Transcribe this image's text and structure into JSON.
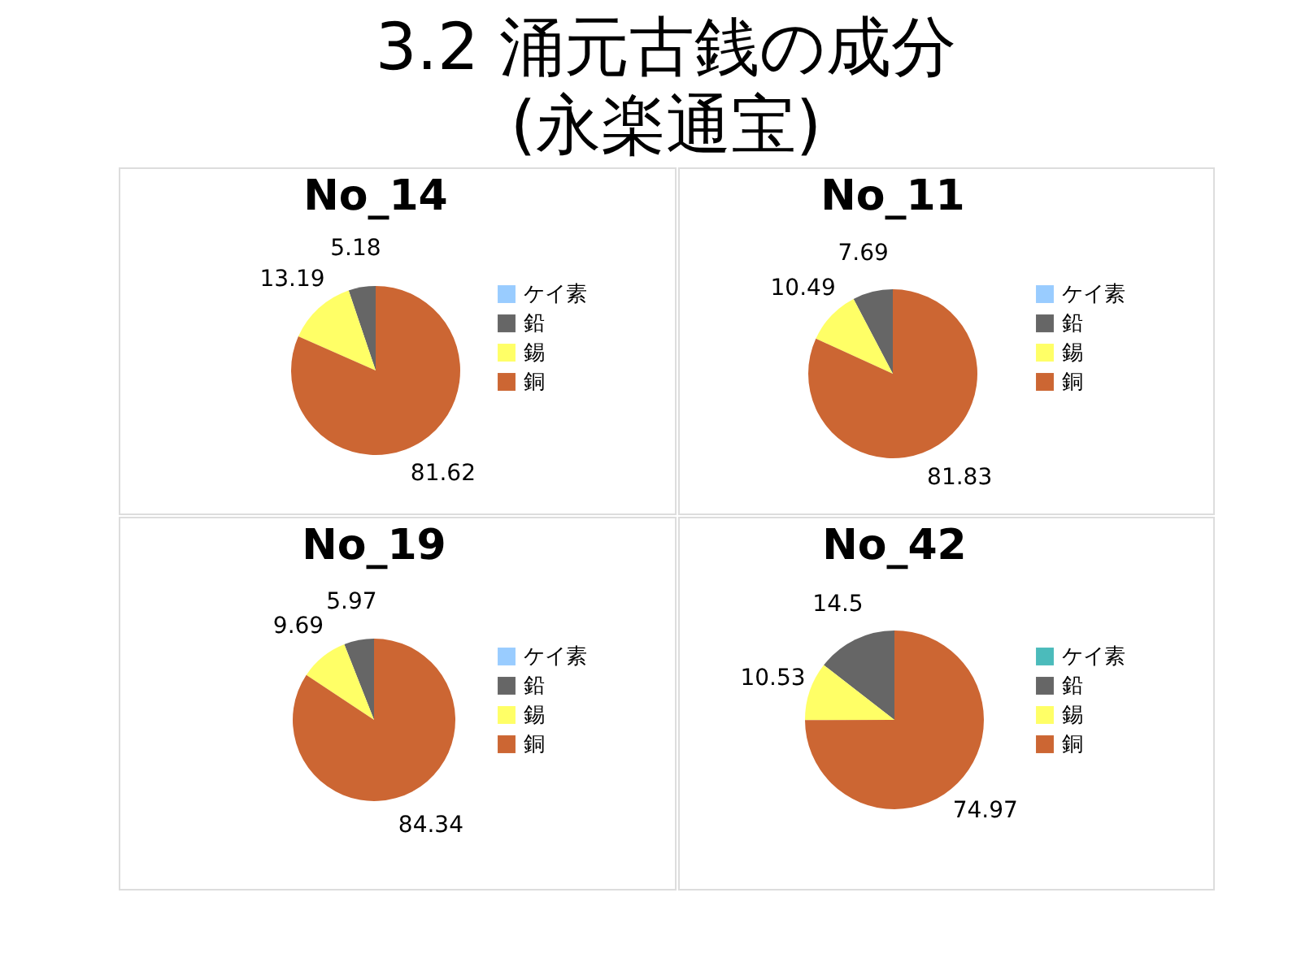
{
  "chart_data": [
    {
      "type": "other",
      "title": "3.2 涌元古銭の成分\n(永楽通宝)"
    },
    {
      "type": "pie",
      "title": "No_14",
      "categories": [
        "ケイ素",
        "鉛",
        "錫",
        "銅"
      ],
      "values": [
        null,
        5.18,
        13.19,
        81.62
      ],
      "colors": [
        "#99ccff",
        "#666666",
        "#ffff66",
        "#cc6633"
      ],
      "data_labels": true,
      "legend": "right"
    },
    {
      "type": "pie",
      "title": "No_11",
      "categories": [
        "ケイ素",
        "鉛",
        "錫",
        "銅"
      ],
      "values": [
        null,
        7.69,
        10.49,
        81.83
      ],
      "colors": [
        "#99ccff",
        "#666666",
        "#ffff66",
        "#cc6633"
      ],
      "data_labels": true,
      "legend": "right"
    },
    {
      "type": "pie",
      "title": "No_19",
      "categories": [
        "ケイ素",
        "鉛",
        "錫",
        "銅"
      ],
      "values": [
        null,
        5.97,
        9.69,
        84.34
      ],
      "colors": [
        "#99ccff",
        "#666666",
        "#ffff66",
        "#cc6633"
      ],
      "data_labels": true,
      "legend": "right"
    },
    {
      "type": "pie",
      "title": "No_42",
      "categories": [
        "ケイ素",
        "鉛",
        "錫",
        "銅"
      ],
      "values": [
        null,
        14.5,
        10.53,
        74.97
      ],
      "colors": [
        "#4bbbbb",
        "#666666",
        "#ffff66",
        "#cc6633"
      ],
      "data_labels": true,
      "legend": "right"
    }
  ]
}
